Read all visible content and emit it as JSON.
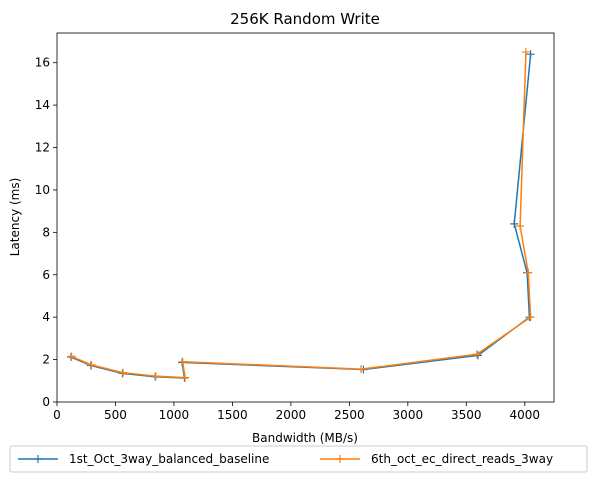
{
  "chart_data": {
    "type": "line",
    "title": "256K  Random Write",
    "xlabel": "Bandwidth (MB/s)",
    "ylabel": "Latency (ms)",
    "xlim": [
      0,
      4250
    ],
    "ylim": [
      0,
      17.4
    ],
    "xticks": [
      0,
      500,
      1000,
      1500,
      2000,
      2500,
      3000,
      3500,
      4000
    ],
    "yticks": [
      0,
      2,
      4,
      6,
      8,
      10,
      12,
      14,
      16
    ],
    "grid": false,
    "legend_position": "bottom-outside",
    "series": [
      {
        "name": "1st_Oct_3way_balanced_baseline",
        "color": "#1f77b4",
        "marker": "plus",
        "x": [
          120,
          290,
          560,
          840,
          1090,
          1070,
          2620,
          3600,
          4040,
          4020,
          3910,
          4050
        ],
        "y": [
          2.12,
          1.72,
          1.35,
          1.19,
          1.13,
          1.87,
          1.53,
          2.2,
          4.0,
          6.1,
          8.4,
          16.4
        ]
      },
      {
        "name": "6th_oct_ec_direct_reads_3way",
        "color": "#ff7f0e",
        "marker": "plus",
        "x": [
          125,
          295,
          565,
          845,
          1095,
          1075,
          2600,
          3590,
          4050,
          4030,
          3960,
          4010
        ],
        "y": [
          2.15,
          1.75,
          1.38,
          1.22,
          1.15,
          1.9,
          1.55,
          2.25,
          4.0,
          6.1,
          8.3,
          16.5
        ]
      }
    ]
  }
}
